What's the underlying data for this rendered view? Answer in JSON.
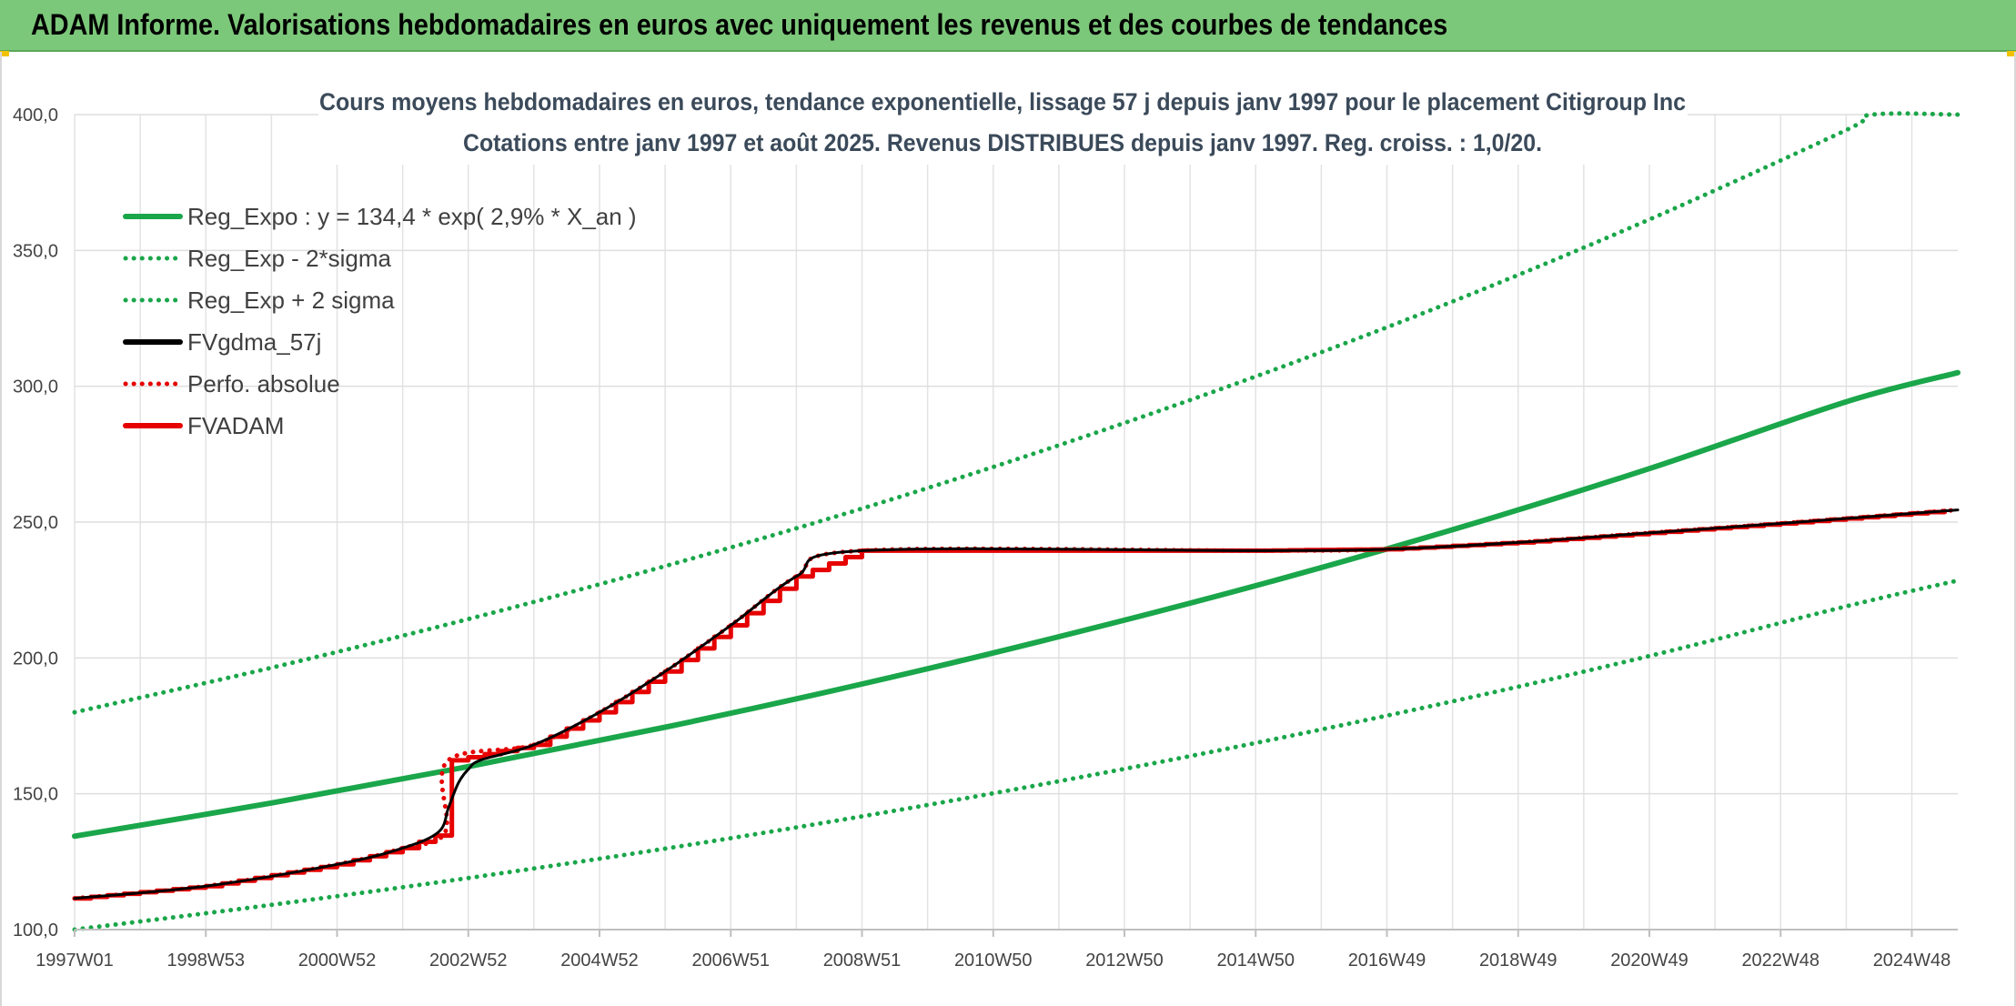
{
  "header": {
    "title": "ADAM Informe. Valorisations hebdomadaires en euros avec uniquement les revenus et des courbes de tendances"
  },
  "chart_data": {
    "type": "line",
    "title": "Cours moyens hebdomadaires en euros, tendance exponentielle, lissage 57 j depuis janv 1997 pour le placement Citigroup Inc",
    "subtitle": "Cotations entre janv 1997 et août 2025. Revenus DISTRIBUES depuis janv 1997. Reg. croiss. : 1,0/20.",
    "xlabel": "",
    "ylabel": "",
    "x_range": [
      1997.0,
      2025.7
    ],
    "ylim": [
      100,
      400
    ],
    "y_ticks": [
      "100,0",
      "150,0",
      "200,0",
      "250,0",
      "300,0",
      "350,0",
      "400,0"
    ],
    "x_ticks": [
      {
        "label": "1997W01",
        "x": 1997.0
      },
      {
        "label": "1998W53",
        "x": 1999.0
      },
      {
        "label": "2000W52",
        "x": 2001.0
      },
      {
        "label": "2002W52",
        "x": 2003.0
      },
      {
        "label": "2004W52",
        "x": 2005.0
      },
      {
        "label": "2006W51",
        "x": 2007.0
      },
      {
        "label": "2008W51",
        "x": 2009.0
      },
      {
        "label": "2010W50",
        "x": 2011.0
      },
      {
        "label": "2012W50",
        "x": 2013.0
      },
      {
        "label": "2014W50",
        "x": 2015.0
      },
      {
        "label": "2016W49",
        "x": 2017.0
      },
      {
        "label": "2018W49",
        "x": 2019.0
      },
      {
        "label": "2020W49",
        "x": 2021.0
      },
      {
        "label": "2022W48",
        "x": 2023.0
      },
      {
        "label": "2024W48",
        "x": 2025.0
      }
    ],
    "grid": true,
    "legend_position": "top-left",
    "series": [
      {
        "name": "Reg_Expo : y = 134,4 * exp( 2,9% *  X_an )",
        "color": "#1aa64a",
        "style": "solid",
        "points": [
          [
            1997.0,
            134.4
          ],
          [
            2000.0,
            146.6
          ],
          [
            2003.0,
            160.0
          ],
          [
            2006.0,
            174.5
          ],
          [
            2009.0,
            190.4
          ],
          [
            2012.0,
            207.8
          ],
          [
            2015.0,
            226.6
          ],
          [
            2018.0,
            247.2
          ],
          [
            2021.0,
            269.7
          ],
          [
            2024.0,
            294.3
          ],
          [
            2025.7,
            305.0
          ]
        ]
      },
      {
        "name": "Reg_Exp - 2*sigma",
        "color": "#1aa64a",
        "style": "dotted",
        "points": [
          [
            1997.0,
            100.0
          ],
          [
            2000.0,
            109.1
          ],
          [
            2003.0,
            119.0
          ],
          [
            2006.0,
            129.8
          ],
          [
            2009.0,
            141.7
          ],
          [
            2012.0,
            154.6
          ],
          [
            2015.0,
            168.7
          ],
          [
            2018.0,
            184.0
          ],
          [
            2021.0,
            200.7
          ],
          [
            2024.0,
            219.0
          ],
          [
            2025.7,
            228.5
          ]
        ]
      },
      {
        "name": "Reg_Exp + 2 sigma",
        "color": "#1aa64a",
        "style": "dotted",
        "points": [
          [
            1997.0,
            180.0
          ],
          [
            2000.0,
            196.4
          ],
          [
            2003.0,
            214.3
          ],
          [
            2006.0,
            233.8
          ],
          [
            2009.0,
            255.0
          ],
          [
            2012.0,
            278.3
          ],
          [
            2015.0,
            303.6
          ],
          [
            2018.0,
            331.2
          ],
          [
            2021.0,
            361.4
          ],
          [
            2024.0,
            394.3
          ],
          [
            2024.4,
            400.0
          ],
          [
            2025.7,
            400.0
          ]
        ]
      },
      {
        "name": "FVgdma_57j",
        "color": "#000000",
        "style": "solid",
        "points": [
          [
            1997.0,
            111.5
          ],
          [
            1999.0,
            116.0
          ],
          [
            2001.0,
            124.0
          ],
          [
            2002.0,
            130.0
          ],
          [
            2002.55,
            136.0
          ],
          [
            2002.7,
            145.0
          ],
          [
            2002.85,
            154.0
          ],
          [
            2003.0,
            159.0
          ],
          [
            2003.2,
            162.5
          ],
          [
            2004.0,
            168.0
          ],
          [
            2005.0,
            180.0
          ],
          [
            2006.0,
            195.0
          ],
          [
            2007.0,
            212.0
          ],
          [
            2008.0,
            230.0
          ],
          [
            2009.0,
            239.5
          ],
          [
            2015.0,
            239.5
          ],
          [
            2017.0,
            240.0
          ],
          [
            2019.0,
            242.5
          ],
          [
            2021.0,
            246.0
          ],
          [
            2023.0,
            249.5
          ],
          [
            2025.7,
            254.5
          ]
        ]
      },
      {
        "name": "Perfo. absolue",
        "color": "#e60000",
        "style": "dotted",
        "points": [
          [
            1997.0,
            111.5
          ],
          [
            1999.0,
            116.0
          ],
          [
            2001.0,
            124.0
          ],
          [
            2002.0,
            130.0
          ],
          [
            2002.65,
            136.0
          ],
          [
            2002.68,
            162.0
          ],
          [
            2004.0,
            168.0
          ],
          [
            2005.0,
            180.0
          ],
          [
            2006.0,
            195.0
          ],
          [
            2007.0,
            212.0
          ],
          [
            2008.0,
            230.0
          ],
          [
            2009.0,
            239.5
          ],
          [
            2015.0,
            239.5
          ],
          [
            2017.0,
            240.0
          ],
          [
            2019.0,
            242.5
          ],
          [
            2021.0,
            246.0
          ],
          [
            2023.0,
            249.5
          ],
          [
            2025.7,
            254.5
          ]
        ]
      },
      {
        "name": "FVADAM",
        "color": "#e60000",
        "style": "solid-step",
        "points": [
          [
            1997.0,
            111.5
          ],
          [
            1999.0,
            116.0
          ],
          [
            2001.0,
            124.0
          ],
          [
            2002.0,
            130.0
          ],
          [
            2002.65,
            136.0
          ],
          [
            2002.68,
            162.0
          ],
          [
            2004.0,
            168.0
          ],
          [
            2005.0,
            180.0
          ],
          [
            2006.0,
            195.0
          ],
          [
            2007.0,
            212.0
          ],
          [
            2008.0,
            230.0
          ],
          [
            2009.0,
            239.5
          ],
          [
            2015.0,
            239.5
          ],
          [
            2017.0,
            240.0
          ],
          [
            2019.0,
            242.5
          ],
          [
            2021.0,
            246.0
          ],
          [
            2023.0,
            249.5
          ],
          [
            2025.7,
            254.5
          ]
        ]
      }
    ]
  }
}
